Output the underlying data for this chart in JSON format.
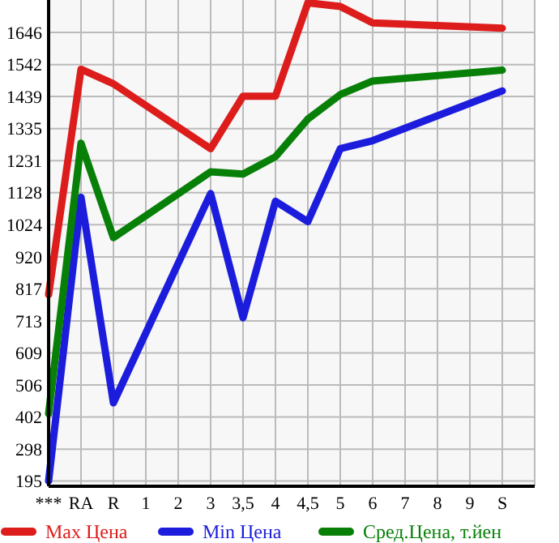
{
  "chart_data": {
    "type": "line",
    "categories": [
      "***",
      "RA",
      "R",
      "1",
      "2",
      "3",
      "3,5",
      "4",
      "4,5",
      "5",
      "6",
      "7",
      "8",
      "9",
      "S"
    ],
    "ylim": [
      178,
      1751
    ],
    "yticks": [
      195,
      298,
      402,
      506,
      609,
      713,
      817,
      920,
      1024,
      1128,
      1231,
      1335,
      1439,
      1542,
      1646
    ],
    "grid": true,
    "legend": "bottom",
    "marker": "none",
    "line_style": "solid",
    "series": [
      {
        "name": "Max Цена",
        "color": "#dd1c1c",
        "values": [
          798,
          1527,
          1480,
          null,
          null,
          1270,
          1440,
          1440,
          1742,
          1730,
          1677,
          null,
          null,
          null,
          1660
        ]
      },
      {
        "name": "Min Цена",
        "color": "#1c1cdd",
        "values": [
          195,
          1113,
          448,
          null,
          null,
          1125,
          723,
          1100,
          1034,
          1270,
          1296,
          null,
          null,
          null,
          1457
        ]
      },
      {
        "name": "Сред.Цена, т.йен",
        "color": "#088008",
        "values": [
          413,
          1288,
          982,
          null,
          null,
          1195,
          1188,
          1244,
          1366,
          1445,
          1489,
          null,
          null,
          null,
          1524
        ]
      }
    ]
  }
}
